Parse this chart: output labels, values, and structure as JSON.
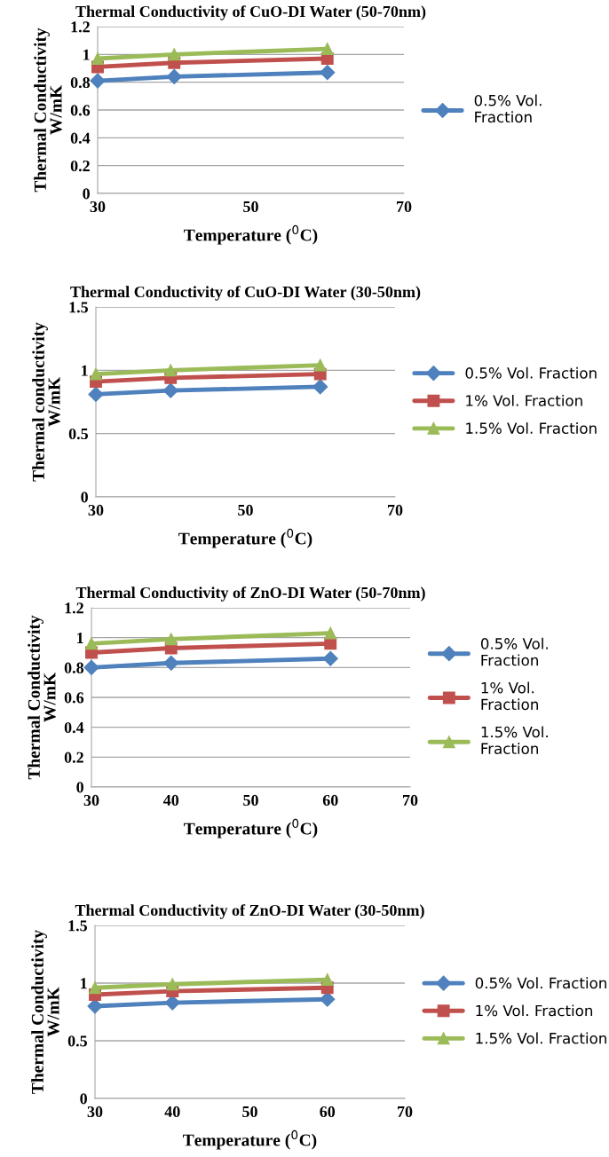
{
  "chart_data": [
    {
      "type": "line",
      "title": "Thermal Conductivity of CuO-DI Water (50-70nm)",
      "xlabel": "Temperature ($^{0}$C)",
      "ylabel": "Thermal Conductivity\nW/mK",
      "x": [
        30,
        40,
        60
      ],
      "xlim": [
        30,
        70
      ],
      "xticks": [
        30,
        50,
        70
      ],
      "ylim": [
        0,
        1.2
      ],
      "yticks": [
        0,
        0.2,
        0.4,
        0.6,
        0.8,
        1,
        1.2
      ],
      "grid": "y",
      "legend": "right",
      "series": [
        {
          "name": "0.5% Vol.\nFraction",
          "color": "#4f81bd",
          "marker": "diamond",
          "values": [
            0.81,
            0.84,
            0.87
          ]
        },
        {
          "color": "#c0504d",
          "marker": "square",
          "values": [
            0.91,
            0.94,
            0.97
          ]
        },
        {
          "color": "#9bbb59",
          "marker": "triangle",
          "values": [
            0.97,
            1.0,
            1.04
          ]
        }
      ]
    },
    {
      "type": "line",
      "title": "Thermal Conductivity of CuO-DI Water (30-50nm)",
      "xlabel": "Temperature ($^{0}$C)",
      "ylabel": "Thermal conductivity\nW/mK",
      "x": [
        30,
        40,
        60
      ],
      "xlim": [
        30,
        70
      ],
      "xticks": [
        30,
        50,
        70
      ],
      "ylim": [
        0,
        1.5
      ],
      "yticks": [
        0,
        0.5,
        1,
        1.5
      ],
      "grid": "y",
      "legend": "right",
      "series": [
        {
          "name": "0.5% Vol. Fraction",
          "color": "#4f81bd",
          "marker": "diamond",
          "values": [
            0.81,
            0.84,
            0.87
          ]
        },
        {
          "name": "1% Vol. Fraction",
          "color": "#c0504d",
          "marker": "square",
          "values": [
            0.91,
            0.94,
            0.97
          ]
        },
        {
          "name": "1.5% Vol. Fraction",
          "color": "#9bbb59",
          "marker": "triangle",
          "values": [
            0.97,
            1.0,
            1.04
          ]
        }
      ]
    },
    {
      "type": "line",
      "title": "Thermal Conductivity of ZnO-DI Water (50-70nm)",
      "xlabel": "Temperature ($^{0}$C)",
      "ylabel": "Thermal Conductivity\nW/mK",
      "x": [
        30,
        40,
        60
      ],
      "xlim": [
        30,
        70
      ],
      "xticks": [
        30,
        40,
        50,
        60,
        70
      ],
      "ylim": [
        0,
        1.2
      ],
      "yticks": [
        0,
        0.2,
        0.4,
        0.6,
        0.8,
        1,
        1.2
      ],
      "grid": "y",
      "legend": "right",
      "series": [
        {
          "name": "0.5% Vol.\nFraction",
          "color": "#4f81bd",
          "marker": "diamond",
          "values": [
            0.8,
            0.83,
            0.86
          ]
        },
        {
          "name": "1% Vol.\nFraction",
          "color": "#c0504d",
          "marker": "square",
          "values": [
            0.9,
            0.93,
            0.96
          ]
        },
        {
          "name": "1.5% Vol.\nFraction",
          "color": "#9bbb59",
          "marker": "triangle",
          "values": [
            0.96,
            0.99,
            1.03
          ]
        }
      ]
    },
    {
      "type": "line",
      "title": "Thermal Conductivity of ZnO-DI Water (30-50nm)",
      "xlabel": "Temperature ($^{0}$C)",
      "ylabel": "Thermal Conductivity\nW/mK",
      "x": [
        30,
        40,
        60
      ],
      "xlim": [
        30,
        70
      ],
      "xticks": [
        30,
        40,
        50,
        60,
        70
      ],
      "ylim": [
        0,
        1.5
      ],
      "yticks": [
        0,
        0.5,
        1,
        1.5
      ],
      "grid": "y",
      "legend": "right",
      "series": [
        {
          "name": "0.5% Vol. Fraction",
          "color": "#4f81bd",
          "marker": "diamond",
          "values": [
            0.8,
            0.83,
            0.86
          ]
        },
        {
          "name": "1% Vol. Fraction",
          "color": "#c0504d",
          "marker": "square",
          "values": [
            0.9,
            0.93,
            0.96
          ]
        },
        {
          "name": "1.5% Vol. Fraction",
          "color": "#9bbb59",
          "marker": "triangle",
          "values": [
            0.96,
            0.99,
            1.03
          ]
        }
      ]
    }
  ]
}
